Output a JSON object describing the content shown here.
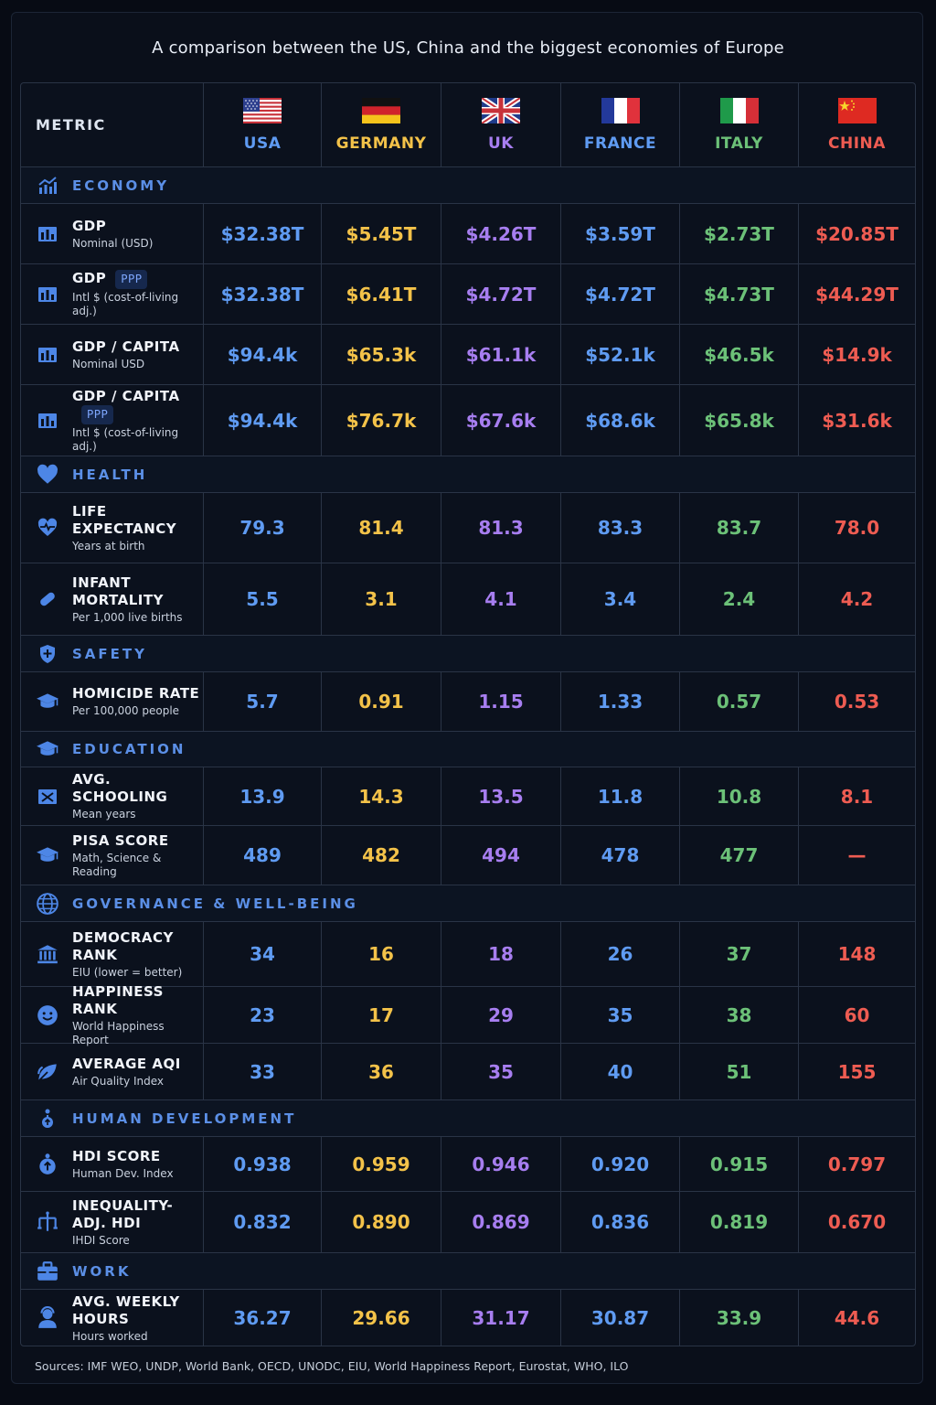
{
  "title": "A comparison between the US, China and the biggest economies of Europe",
  "metric_header": "METRIC",
  "countries": [
    "USA",
    "GERMANY",
    "UK",
    "FRANCE",
    "ITALY",
    "CHINA"
  ],
  "sources": "Sources: IMF WEO, UNDP, World Bank, OECD, UNODC, EIU, World Happiness Report, Eurostat, WHO, ILO",
  "colors": {
    "usa": "#5f9bf2",
    "germany": "#f3c249",
    "uk": "#a77ef0",
    "france": "#5f9bf2",
    "italy": "#6cc178",
    "china": "#ee5c52",
    "section": "#5b8fe6"
  },
  "sections": {
    "economy": "ECONOMY",
    "health": "HEALTH",
    "safety": "SAFETY",
    "education": "EDUCATION",
    "governance": "GOVERNANCE & WELL-BEING",
    "human": "HUMAN DEVELOPMENT",
    "work": "WORK"
  },
  "chart_data": {
    "type": "table",
    "title": "A comparison between the US, China and the biggest economies of Europe",
    "columns": [
      "USA",
      "GERMANY",
      "UK",
      "FRANCE",
      "ITALY",
      "CHINA"
    ],
    "rows": [
      {
        "section": "ECONOMY",
        "icon": "chart-bar-icon",
        "name": "GDP",
        "sub": "Nominal (USD)",
        "badge": "",
        "values": [
          "$32.38T",
          "$5.45T",
          "$4.26T",
          "$3.59T",
          "$2.73T",
          "$20.85T"
        ]
      },
      {
        "section": "ECONOMY",
        "icon": "chart-bar-icon",
        "name": "GDP",
        "sub": "Intl $ (cost-of-living adj.)",
        "badge": "PPP",
        "values": [
          "$32.38T",
          "$6.41T",
          "$4.72T",
          "$4.72T",
          "$4.73T",
          "$44.29T"
        ]
      },
      {
        "section": "ECONOMY",
        "icon": "chart-bar-icon",
        "name": "GDP / CAPITA",
        "sub": "Nominal USD",
        "badge": "",
        "values": [
          "$94.4k",
          "$65.3k",
          "$61.1k",
          "$52.1k",
          "$46.5k",
          "$14.9k"
        ]
      },
      {
        "section": "ECONOMY",
        "icon": "chart-bar-icon",
        "name": "GDP / CAPITA",
        "sub": "Intl $ (cost-of-living adj.)",
        "badge": "PPP",
        "values": [
          "$94.4k",
          "$76.7k",
          "$67.6k",
          "$68.6k",
          "$65.8k",
          "$31.6k"
        ]
      },
      {
        "section": "HEALTH",
        "icon": "heartbeat-icon",
        "name": "LIFE EXPECTANCY",
        "sub": "Years at birth",
        "badge": "",
        "values": [
          "79.3",
          "81.4",
          "81.3",
          "83.3",
          "83.7",
          "78.0"
        ]
      },
      {
        "section": "HEALTH",
        "icon": "pill-icon",
        "name": "INFANT MORTALITY",
        "sub": "Per 1,000 live births",
        "badge": "",
        "values": [
          "5.5",
          "3.1",
          "4.1",
          "3.4",
          "2.4",
          "4.2"
        ]
      },
      {
        "section": "SAFETY",
        "icon": "graduation-cap-icon",
        "name": "HOMICIDE RATE",
        "sub": "Per 100,000 people",
        "badge": "",
        "values": [
          "5.7",
          "0.91",
          "1.15",
          "1.33",
          "0.57",
          "0.53"
        ]
      },
      {
        "section": "EDUCATION",
        "icon": "school-icon",
        "name": "AVG. SCHOOLING",
        "sub": "Mean years",
        "badge": "",
        "values": [
          "13.9",
          "14.3",
          "13.5",
          "11.8",
          "10.8",
          "8.1"
        ]
      },
      {
        "section": "EDUCATION",
        "icon": "graduation-cap-icon",
        "name": "PISA SCORE",
        "sub": "Math, Science & Reading",
        "badge": "",
        "values": [
          "489",
          "482",
          "494",
          "478",
          "477",
          "—"
        ]
      },
      {
        "section": "GOVERNANCE & WELL-BEING",
        "icon": "capitol-icon",
        "name": "DEMOCRACY RANK",
        "sub": "EIU (lower = better)",
        "badge": "",
        "values": [
          "34",
          "16",
          "18",
          "26",
          "37",
          "148"
        ]
      },
      {
        "section": "GOVERNANCE & WELL-BEING",
        "icon": "smiley-icon",
        "name": "HAPPINESS RANK",
        "sub": "World Happiness Report",
        "badge": "",
        "values": [
          "23",
          "17",
          "29",
          "35",
          "38",
          "60"
        ]
      },
      {
        "section": "GOVERNANCE & WELL-BEING",
        "icon": "leaf-icon",
        "name": "AVERAGE AQI",
        "sub": "Air Quality Index",
        "badge": "",
        "values": [
          "33",
          "36",
          "35",
          "40",
          "51",
          "155"
        ]
      },
      {
        "section": "HUMAN DEVELOPMENT",
        "icon": "person-circle-icon",
        "name": "HDI SCORE",
        "sub": "Human Dev. Index",
        "badge": "",
        "values": [
          "0.938",
          "0.959",
          "0.946",
          "0.920",
          "0.915",
          "0.797"
        ]
      },
      {
        "section": "HUMAN DEVELOPMENT",
        "icon": "scale-icon",
        "name": "INEQUALITY-ADJ. HDI",
        "sub": "IHDI Score",
        "badge": "",
        "values": [
          "0.832",
          "0.890",
          "0.869",
          "0.836",
          "0.819",
          "0.670"
        ]
      },
      {
        "section": "WORK",
        "icon": "worker-icon",
        "name": "AVG. WEEKLY HOURS",
        "sub": "Hours worked",
        "badge": "",
        "values": [
          "36.27",
          "29.66",
          "31.17",
          "30.87",
          "33.9",
          "44.6"
        ]
      }
    ]
  }
}
